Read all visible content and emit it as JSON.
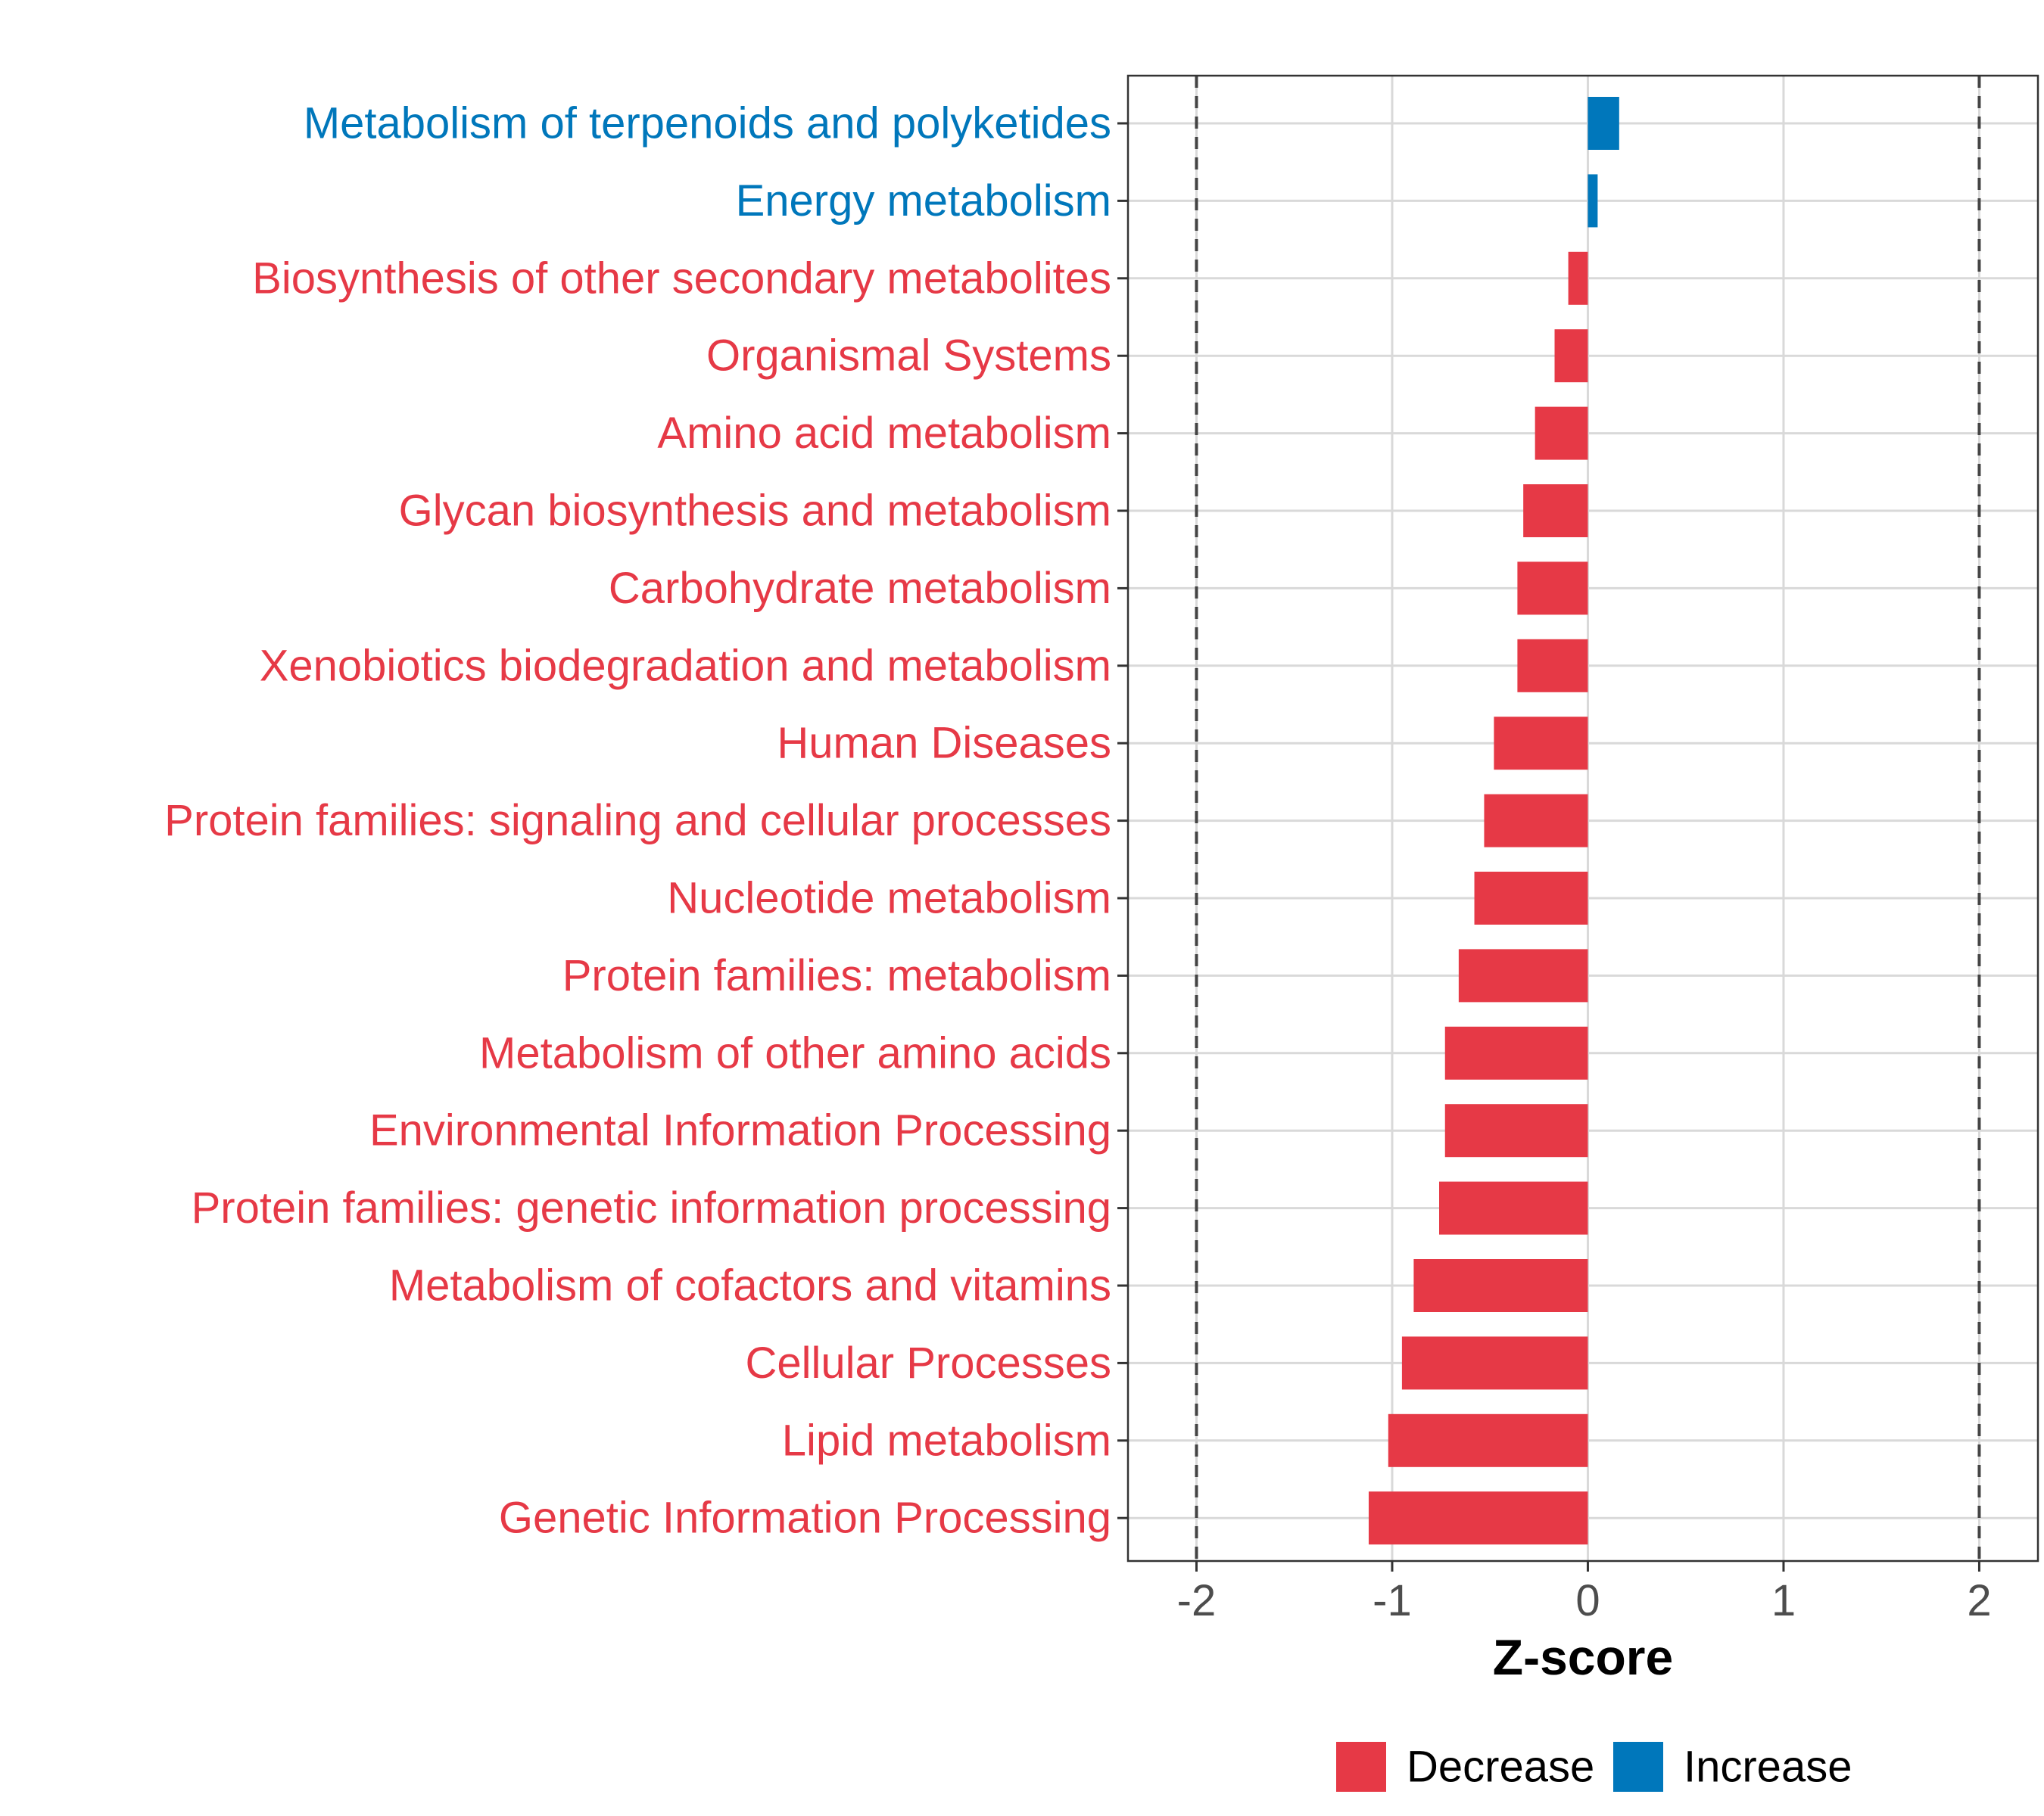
{
  "chart_data": {
    "type": "bar",
    "orientation": "horizontal",
    "title": "",
    "xlabel": "Z-score",
    "ylabel": "",
    "xlim": [
      -2.35,
      2.3
    ],
    "xticks": [
      -2,
      -1,
      0,
      1,
      2
    ],
    "tick_labels": [
      "-2",
      "-1",
      "0",
      "1",
      "2"
    ],
    "reference_lines": [
      -2,
      2
    ],
    "grid": true,
    "categories": [
      "Metabolism of terpenoids and polyketides",
      "Energy metabolism",
      "Biosynthesis of other secondary metabolites",
      "Organismal Systems",
      "Amino acid metabolism",
      "Glycan biosynthesis and metabolism",
      "Carbohydrate metabolism",
      "Xenobiotics biodegradation and metabolism",
      "Human Diseases",
      "Protein families: signaling and cellular processes",
      "Nucleotide metabolism",
      "Protein families: metabolism",
      "Metabolism of other amino acids",
      "Environmental Information Processing",
      "Protein families: genetic information processing",
      "Metabolism of cofactors and vitamins",
      "Cellular Processes",
      "Lipid metabolism",
      "Genetic Information Processing"
    ],
    "values": [
      0.16,
      0.05,
      -0.1,
      -0.17,
      -0.27,
      -0.33,
      -0.36,
      -0.36,
      -0.48,
      -0.53,
      -0.58,
      -0.66,
      -0.73,
      -0.73,
      -0.76,
      -0.89,
      -0.95,
      -1.02,
      -1.12
    ],
    "groups": [
      "Increase",
      "Increase",
      "Decrease",
      "Decrease",
      "Decrease",
      "Decrease",
      "Decrease",
      "Decrease",
      "Decrease",
      "Decrease",
      "Decrease",
      "Decrease",
      "Decrease",
      "Decrease",
      "Decrease",
      "Decrease",
      "Decrease",
      "Decrease",
      "Decrease"
    ],
    "colors": {
      "Decrease": "#E63946",
      "Increase": "#0077BB"
    },
    "legend": {
      "position": "bottom",
      "entries": [
        {
          "label": "Decrease",
          "color": "#E63946"
        },
        {
          "label": "Increase",
          "color": "#0077BB"
        }
      ]
    }
  }
}
